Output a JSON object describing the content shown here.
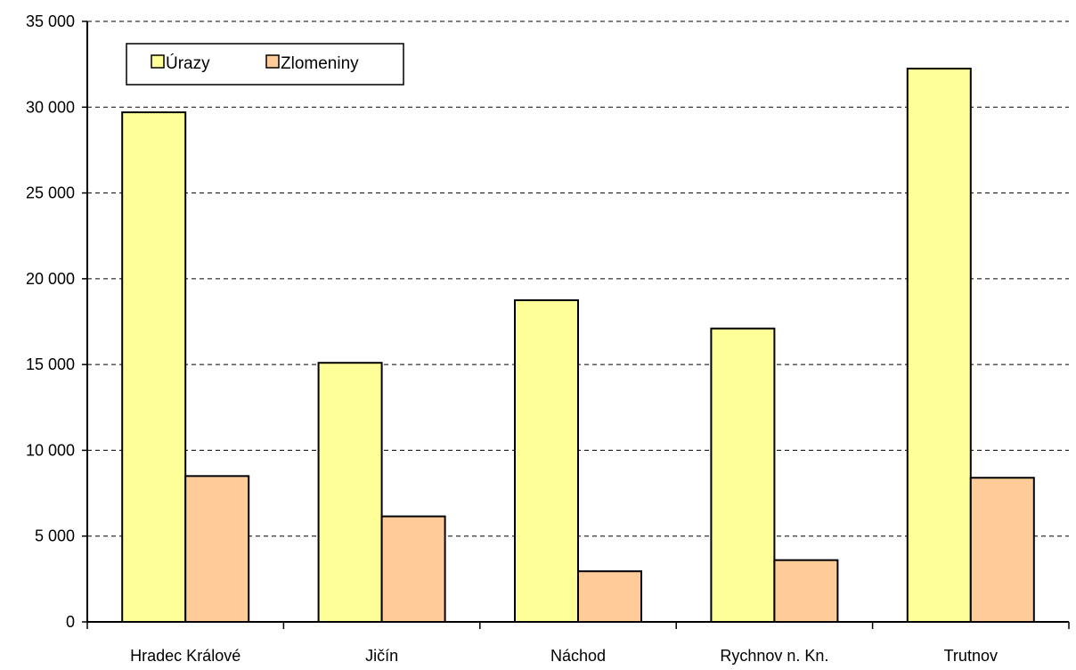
{
  "chart_data": {
    "type": "bar",
    "title": "",
    "xlabel": "",
    "ylabel": "",
    "categories": [
      "Hradec Králové",
      "Jičín",
      "Náchod",
      "Rychnov n. Kn.",
      "Trutnov"
    ],
    "series": [
      {
        "name": "Úrazy",
        "values": [
          29700,
          15100,
          18750,
          17100,
          32250
        ],
        "color": "#FFFF99"
      },
      {
        "name": "Zlomeniny",
        "values": [
          8500,
          6150,
          2950,
          3600,
          8400
        ],
        "color": "#FFCC99"
      }
    ],
    "ylim": [
      0,
      35000
    ],
    "yticks": [
      0,
      5000,
      10000,
      15000,
      20000,
      25000,
      30000,
      35000
    ],
    "ytick_labels": [
      "0",
      "5 000",
      "10 000",
      "15 000",
      "20 000",
      "25 000",
      "30 000",
      "35 000"
    ],
    "grid": "horizontal-dashed",
    "legend_position": "top-left"
  }
}
